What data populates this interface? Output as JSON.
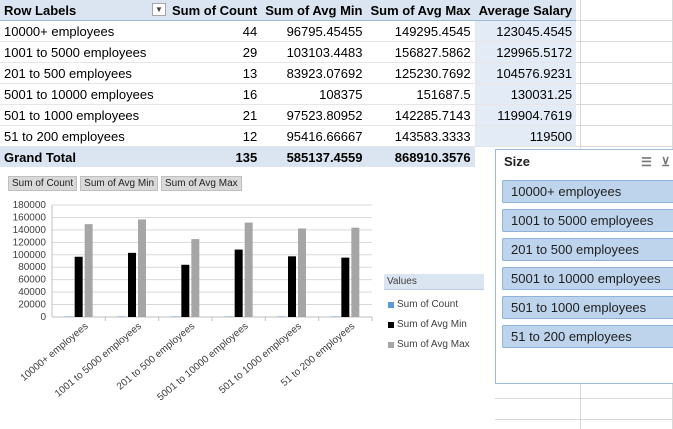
{
  "pivot": {
    "headers": [
      "Row Labels",
      "Sum of Count",
      "Sum of Avg Min",
      "Sum of Avg Max",
      "Average Salary"
    ],
    "rows": [
      {
        "label": "10000+ employees",
        "count": "44",
        "min": "96795.45455",
        "max": "149295.4545",
        "avg": "123045.4545"
      },
      {
        "label": "1001 to 5000 employees",
        "count": "29",
        "min": "103103.4483",
        "max": "156827.5862",
        "avg": "129965.5172"
      },
      {
        "label": "201 to 500 employees",
        "count": "13",
        "min": "83923.07692",
        "max": "125230.7692",
        "avg": "104576.9231"
      },
      {
        "label": "5001 to 10000 employees",
        "count": "16",
        "min": "108375",
        "max": "151687.5",
        "avg": "130031.25"
      },
      {
        "label": "501 to 1000 employees",
        "count": "21",
        "min": "97523.80952",
        "max": "142285.7143",
        "avg": "119904.7619"
      },
      {
        "label": "51 to 200 employees",
        "count": "12",
        "min": "95416.66667",
        "max": "143583.3333",
        "avg": "119500"
      }
    ],
    "total": {
      "label": "Grand Total",
      "count": "135",
      "min": "585137.4559",
      "max": "868910.3576"
    }
  },
  "chart_buttons": [
    "Sum of Count",
    "Sum of Avg Min",
    "Sum of Avg Max"
  ],
  "legend": {
    "title": "Values",
    "items": [
      "Sum of Count",
      "Sum of Avg Min",
      "Sum of Avg Max"
    ],
    "colors": [
      "#5b9bd5",
      "#000000",
      "#a6a6a6"
    ]
  },
  "chart_data": {
    "type": "bar",
    "categories": [
      "10000+ employees",
      "1001 to 5000 employees",
      "201 to 500 employees",
      "5001 to 10000 employees",
      "501 to 1000 employees",
      "51 to 200 employees"
    ],
    "series": [
      {
        "name": "Sum of Count",
        "values": [
          44,
          29,
          13,
          16,
          21,
          12
        ],
        "color": "#5b9bd5"
      },
      {
        "name": "Sum of Avg Min",
        "values": [
          96795.45455,
          103103.4483,
          83923.07692,
          108375,
          97523.80952,
          95416.66667
        ],
        "color": "#000000"
      },
      {
        "name": "Sum of Avg Max",
        "values": [
          149295.4545,
          156827.5862,
          125230.7692,
          151687.5,
          142285.7143,
          143583.3333
        ],
        "color": "#a6a6a6"
      }
    ],
    "yticks": [
      "180000",
      "160000",
      "140000",
      "120000",
      "100000",
      "80000",
      "60000",
      "40000",
      "20000",
      "0"
    ],
    "ylim": [
      0,
      180000
    ],
    "grid": true,
    "legend_position": "right"
  },
  "slicer": {
    "title": "Size",
    "items": [
      "10000+ employees",
      "1001 to 5000 employees",
      "201 to 500 employees",
      "5001 to 10000 employees",
      "501 to 1000 employees",
      "51 to 200 employees"
    ]
  }
}
